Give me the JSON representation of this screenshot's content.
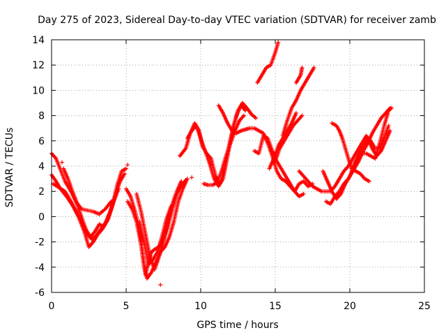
{
  "chart_data": {
    "type": "scatter",
    "title": "Day 275 of 2023, Sidereal Day-to-day VTEC variation (SDTVAR) for receiver zamb",
    "xlabel": "GPS time / hours",
    "ylabel": "SDTVAR / TECUs",
    "xlim": [
      0,
      25
    ],
    "ylim": [
      -6,
      14
    ],
    "xticks": [
      0,
      5,
      10,
      15,
      20,
      25
    ],
    "yticks": [
      -6,
      -4,
      -2,
      0,
      2,
      4,
      6,
      8,
      10,
      12,
      14
    ],
    "grid": true,
    "marker": "+",
    "color": "#ff0000",
    "arcs": [
      [
        [
          0.0,
          5.0
        ],
        [
          0.3,
          4.6
        ],
        [
          0.6,
          3.7
        ],
        [
          0.9,
          2.8
        ],
        [
          1.3,
          2.0
        ],
        [
          1.7,
          1.0
        ],
        [
          2.0,
          0.0
        ],
        [
          2.3,
          -1.0
        ],
        [
          2.6,
          -1.6
        ],
        [
          2.9,
          -1.2
        ],
        [
          3.2,
          -0.6
        ],
        [
          3.5,
          -0.8
        ],
        [
          3.8,
          -0.2
        ],
        [
          4.1,
          1.0
        ],
        [
          4.4,
          2.5
        ],
        [
          4.7,
          3.6
        ],
        [
          5.0,
          3.8
        ]
      ],
      [
        [
          0.0,
          3.3
        ],
        [
          0.3,
          2.8
        ],
        [
          0.6,
          2.2
        ],
        [
          1.0,
          1.6
        ],
        [
          1.4,
          0.9
        ],
        [
          1.8,
          0.0
        ],
        [
          2.2,
          -1.2
        ],
        [
          2.5,
          -2.4
        ],
        [
          2.8,
          -2.0
        ],
        [
          3.1,
          -1.4
        ],
        [
          3.4,
          -1.0
        ],
        [
          3.7,
          -0.4
        ],
        [
          4.0,
          0.6
        ],
        [
          4.3,
          1.8
        ],
        [
          4.6,
          2.8
        ],
        [
          4.9,
          3.4
        ]
      ],
      [
        [
          0.1,
          2.6
        ],
        [
          0.5,
          2.3
        ],
        [
          0.9,
          2.0
        ],
        [
          1.3,
          1.2
        ],
        [
          1.7,
          0.3
        ],
        [
          2.1,
          -0.6
        ],
        [
          2.4,
          -1.4
        ],
        [
          2.7,
          -1.8
        ],
        [
          3.0,
          -1.5
        ],
        [
          3.3,
          -1.0
        ],
        [
          3.6,
          -0.5
        ],
        [
          3.9,
          0.3
        ],
        [
          4.2,
          1.3
        ],
        [
          4.5,
          2.2
        ]
      ],
      [
        [
          0.8,
          3.8
        ],
        [
          1.1,
          3.0
        ],
        [
          1.4,
          2.0
        ],
        [
          1.7,
          1.1
        ],
        [
          2.0,
          0.6
        ],
        [
          2.4,
          0.5
        ],
        [
          2.8,
          0.4
        ],
        [
          3.2,
          0.2
        ],
        [
          3.6,
          0.6
        ],
        [
          4.0,
          1.2
        ]
      ],
      [
        [
          5.0,
          2.2
        ],
        [
          5.3,
          1.6
        ],
        [
          5.6,
          0.4
        ],
        [
          5.9,
          -1.0
        ],
        [
          6.1,
          -2.8
        ],
        [
          6.3,
          -4.6
        ],
        [
          6.5,
          -3.6
        ],
        [
          6.7,
          -2.8
        ],
        [
          6.9,
          -2.6
        ],
        [
          7.2,
          -2.4
        ],
        [
          7.5,
          -1.8
        ],
        [
          7.8,
          -0.8
        ],
        [
          8.1,
          0.6
        ],
        [
          8.4,
          1.8
        ],
        [
          8.7,
          2.4
        ],
        [
          9.0,
          2.9
        ]
      ],
      [
        [
          5.1,
          1.2
        ],
        [
          5.4,
          0.6
        ],
        [
          5.7,
          -0.4
        ],
        [
          6.0,
          -2.2
        ],
        [
          6.2,
          -4.0
        ],
        [
          6.4,
          -4.9
        ],
        [
          6.7,
          -4.4
        ],
        [
          7.0,
          -3.6
        ],
        [
          7.3,
          -2.8
        ],
        [
          7.6,
          -2.4
        ],
        [
          7.9,
          -1.6
        ],
        [
          8.2,
          -0.4
        ],
        [
          8.5,
          1.2
        ],
        [
          8.8,
          2.2
        ],
        [
          9.1,
          3.0
        ]
      ],
      [
        [
          5.7,
          1.8
        ],
        [
          6.0,
          0.4
        ],
        [
          6.3,
          -1.4
        ],
        [
          6.6,
          -3.2
        ],
        [
          6.9,
          -4.2
        ],
        [
          7.2,
          -3.2
        ],
        [
          7.5,
          -2.0
        ],
        [
          7.8,
          -0.4
        ],
        [
          8.1,
          1.0
        ],
        [
          8.4,
          2.0
        ],
        [
          8.7,
          2.8
        ]
      ],
      [
        [
          5.9,
          -0.4
        ],
        [
          6.2,
          -2.0
        ],
        [
          6.5,
          -3.8
        ],
        [
          6.8,
          -3.4
        ],
        [
          7.1,
          -2.8
        ],
        [
          7.4,
          -1.6
        ],
        [
          7.7,
          -0.2
        ],
        [
          8.0,
          0.8
        ]
      ],
      [
        [
          8.6,
          4.8
        ],
        [
          9.0,
          5.4
        ],
        [
          9.3,
          6.6
        ],
        [
          9.6,
          7.4
        ],
        [
          9.9,
          6.8
        ],
        [
          10.1,
          5.6
        ],
        [
          10.4,
          5.0
        ],
        [
          10.7,
          4.6
        ],
        [
          11.0,
          3.2
        ],
        [
          11.3,
          2.6
        ],
        [
          11.6,
          3.8
        ],
        [
          11.9,
          5.6
        ],
        [
          12.2,
          7.2
        ],
        [
          12.5,
          8.4
        ],
        [
          12.8,
          9.0
        ],
        [
          13.1,
          8.6
        ],
        [
          13.4,
          8.1
        ],
        [
          13.7,
          7.8
        ]
      ],
      [
        [
          9.1,
          6.2
        ],
        [
          9.4,
          6.8
        ],
        [
          9.7,
          7.2
        ],
        [
          10.0,
          6.2
        ],
        [
          10.3,
          5.2
        ],
        [
          10.6,
          4.2
        ],
        [
          10.9,
          3.0
        ],
        [
          11.2,
          2.4
        ],
        [
          11.5,
          3.0
        ],
        [
          11.8,
          4.8
        ],
        [
          12.1,
          6.6
        ],
        [
          12.4,
          8.0
        ],
        [
          12.7,
          8.8
        ],
        [
          13.0,
          8.4
        ]
      ],
      [
        [
          10.2,
          2.6
        ],
        [
          10.5,
          2.5
        ],
        [
          10.8,
          2.5
        ],
        [
          11.1,
          2.7
        ],
        [
          11.4,
          3.6
        ],
        [
          11.7,
          4.8
        ],
        [
          12.0,
          5.8
        ],
        [
          12.3,
          6.8
        ],
        [
          12.6,
          7.6
        ],
        [
          12.9,
          8.0
        ]
      ],
      [
        [
          11.2,
          8.8
        ],
        [
          11.5,
          8.2
        ],
        [
          11.8,
          7.4
        ],
        [
          12.1,
          6.8
        ],
        [
          12.4,
          6.6
        ],
        [
          12.7,
          6.8
        ],
        [
          13.0,
          6.9
        ],
        [
          13.3,
          7.0
        ],
        [
          13.6,
          7.0
        ],
        [
          13.9,
          6.8
        ],
        [
          14.2,
          6.6
        ],
        [
          14.5,
          5.8
        ],
        [
          14.8,
          4.8
        ],
        [
          15.1,
          3.6
        ],
        [
          15.4,
          3.0
        ],
        [
          15.7,
          2.8
        ],
        [
          16.0,
          2.4
        ],
        [
          16.3,
          2.0
        ],
        [
          16.6,
          2.6
        ],
        [
          16.9,
          2.8
        ],
        [
          17.2,
          2.4
        ],
        [
          17.5,
          2.6
        ]
      ],
      [
        [
          13.6,
          5.2
        ],
        [
          13.9,
          5.0
        ],
        [
          14.2,
          6.4
        ],
        [
          14.5,
          6.2
        ],
        [
          14.8,
          5.2
        ],
        [
          15.1,
          4.4
        ],
        [
          15.4,
          3.8
        ],
        [
          15.7,
          3.2
        ],
        [
          16.0,
          2.6
        ],
        [
          16.3,
          2.0
        ],
        [
          16.6,
          1.6
        ],
        [
          16.9,
          1.8
        ]
      ],
      [
        [
          13.8,
          10.6
        ],
        [
          14.1,
          11.2
        ],
        [
          14.4,
          11.8
        ],
        [
          14.7,
          12.0
        ],
        [
          15.0,
          13.0
        ],
        [
          15.2,
          13.8
        ]
      ],
      [
        [
          15.5,
          6.4
        ],
        [
          15.8,
          7.6
        ],
        [
          16.1,
          8.6
        ],
        [
          16.4,
          9.2
        ],
        [
          16.7,
          10.0
        ],
        [
          17.0,
          10.6
        ],
        [
          17.3,
          11.2
        ],
        [
          17.6,
          11.8
        ]
      ],
      [
        [
          15.0,
          4.4
        ],
        [
          15.3,
          5.4
        ],
        [
          15.6,
          6.0
        ],
        [
          15.9,
          6.6
        ],
        [
          16.2,
          7.2
        ],
        [
          16.5,
          7.6
        ],
        [
          16.8,
          8.0
        ]
      ],
      [
        [
          14.6,
          3.8
        ],
        [
          14.9,
          4.6
        ],
        [
          15.2,
          5.6
        ],
        [
          15.5,
          6.2
        ],
        [
          15.8,
          6.8
        ],
        [
          16.1,
          7.4
        ],
        [
          16.4,
          8.2
        ]
      ],
      [
        [
          16.4,
          10.6
        ],
        [
          16.7,
          11.2
        ],
        [
          16.8,
          11.8
        ]
      ],
      [
        [
          16.6,
          3.6
        ],
        [
          16.9,
          3.2
        ],
        [
          17.2,
          2.8
        ],
        [
          17.5,
          2.4
        ],
        [
          17.8,
          2.2
        ],
        [
          18.1,
          2.0
        ],
        [
          18.4,
          2.0
        ],
        [
          18.7,
          2.0
        ],
        [
          19.0,
          2.4
        ],
        [
          19.3,
          3.0
        ],
        [
          19.6,
          3.6
        ],
        [
          19.9,
          4.0
        ],
        [
          20.2,
          4.6
        ],
        [
          20.5,
          5.2
        ],
        [
          20.8,
          5.8
        ],
        [
          21.1,
          6.4
        ],
        [
          21.4,
          6.0
        ],
        [
          21.7,
          5.4
        ],
        [
          22.0,
          5.4
        ],
        [
          22.3,
          6.2
        ],
        [
          22.6,
          7.2
        ]
      ],
      [
        [
          18.2,
          3.6
        ],
        [
          18.5,
          2.8
        ],
        [
          18.8,
          2.0
        ],
        [
          19.1,
          1.4
        ],
        [
          19.4,
          1.8
        ],
        [
          19.7,
          2.6
        ],
        [
          20.0,
          3.2
        ],
        [
          20.3,
          4.2
        ],
        [
          20.6,
          5.0
        ],
        [
          20.9,
          5.6
        ],
        [
          21.2,
          6.2
        ],
        [
          21.5,
          5.4
        ],
        [
          21.8,
          4.8
        ],
        [
          22.1,
          5.2
        ],
        [
          22.4,
          6.0
        ],
        [
          22.7,
          6.8
        ]
      ],
      [
        [
          18.4,
          1.2
        ],
        [
          18.7,
          1.0
        ],
        [
          19.0,
          1.6
        ],
        [
          19.3,
          2.0
        ],
        [
          19.6,
          2.6
        ],
        [
          19.9,
          3.0
        ],
        [
          20.2,
          3.6
        ],
        [
          20.5,
          4.4
        ],
        [
          20.8,
          5.0
        ],
        [
          21.1,
          5.0
        ],
        [
          21.4,
          4.8
        ],
        [
          21.7,
          4.6
        ],
        [
          22.0,
          5.8
        ],
        [
          22.3,
          7.2
        ],
        [
          22.6,
          8.4
        ],
        [
          22.8,
          8.6
        ]
      ],
      [
        [
          18.8,
          7.4
        ],
        [
          19.1,
          7.2
        ],
        [
          19.3,
          6.8
        ],
        [
          19.5,
          6.2
        ],
        [
          19.7,
          5.4
        ],
        [
          19.9,
          4.6
        ],
        [
          20.1,
          3.8
        ],
        [
          20.4,
          3.6
        ],
        [
          20.7,
          3.4
        ],
        [
          21.0,
          3.0
        ],
        [
          21.3,
          2.8
        ]
      ],
      [
        [
          20.0,
          3.2
        ],
        [
          20.3,
          3.8
        ],
        [
          20.6,
          4.4
        ],
        [
          20.9,
          5.2
        ],
        [
          21.2,
          5.8
        ],
        [
          21.5,
          6.6
        ],
        [
          21.8,
          7.2
        ],
        [
          22.1,
          7.8
        ],
        [
          22.4,
          8.2
        ],
        [
          22.7,
          8.6
        ]
      ]
    ],
    "outliers": [
      [
        7.3,
        -5.4
      ],
      [
        5.1,
        4.1
      ],
      [
        0.7,
        4.3
      ],
      [
        9.4,
        3.1
      ]
    ]
  }
}
